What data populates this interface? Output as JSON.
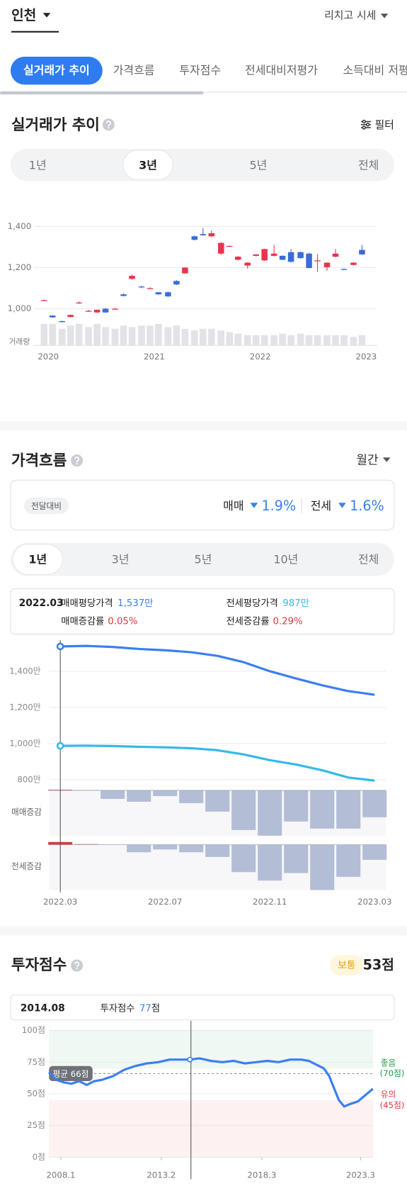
{
  "header": {
    "region": "인천",
    "source": "리치고 시세"
  },
  "tabs": {
    "items": [
      "실거래가 추이",
      "가격흐름",
      "투자점수",
      "전세대비저평가",
      "소득대비 저평가"
    ],
    "active": 0
  },
  "trade": {
    "title": "실거래가 추이",
    "filter": "필터",
    "periods": [
      "1년",
      "3년",
      "5년",
      "전체"
    ],
    "active": 1,
    "chart_data": {
      "type": "candlestick",
      "volume_label": "거래량",
      "x": [
        2019.96,
        2020.04,
        2020.13,
        2020.21,
        2020.29,
        2020.38,
        2020.46,
        2020.54,
        2020.63,
        2020.71,
        2020.79,
        2020.88,
        2020.96,
        2021.04,
        2021.13,
        2021.21,
        2021.29,
        2021.38,
        2021.46,
        2021.54,
        2021.63,
        2021.71,
        2021.79,
        2021.88,
        2021.96,
        2022.04,
        2022.13,
        2022.21,
        2022.29,
        2022.38,
        2022.46,
        2022.54,
        2022.63,
        2022.71,
        2022.79,
        2022.88,
        2022.96
      ],
      "ohlc": [
        [
          1038,
          1044,
          1036,
          1042
        ],
        [
          967,
          969,
          955,
          958
        ],
        [
          940,
          942,
          933,
          935
        ],
        [
          960,
          972,
          958,
          970
        ],
        [
          1030,
          1036,
          1024,
          1030
        ],
        [
          990,
          995,
          985,
          990
        ],
        [
          982,
          996,
          980,
          995
        ],
        [
          1000,
          1004,
          980,
          982
        ],
        [
          1000,
          1004,
          996,
          1000
        ],
        [
          1070,
          1075,
          1060,
          1062
        ],
        [
          1145,
          1165,
          1142,
          1160
        ],
        [
          1108,
          1112,
          1100,
          1105
        ],
        [
          1100,
          1104,
          1096,
          1100
        ],
        [
          1080,
          1082,
          1068,
          1070
        ],
        [
          1080,
          1084,
          1058,
          1060
        ],
        [
          1135,
          1138,
          1115,
          1118
        ],
        [
          1172,
          1202,
          1170,
          1200
        ],
        [
          1352,
          1356,
          1332,
          1335
        ],
        [
          1363,
          1392,
          1355,
          1357
        ],
        [
          1352,
          1380,
          1348,
          1367
        ],
        [
          1268,
          1324,
          1262,
          1320
        ],
        [
          1305,
          1308,
          1300,
          1305
        ],
        [
          1238,
          1256,
          1235,
          1253
        ],
        [
          1210,
          1226,
          1195,
          1224
        ],
        [
          1257,
          1266,
          1254,
          1264
        ],
        [
          1235,
          1292,
          1232,
          1290
        ],
        [
          1257,
          1310,
          1254,
          1268
        ],
        [
          1257,
          1260,
          1236,
          1238
        ],
        [
          1275,
          1290,
          1225,
          1228
        ],
        [
          1275,
          1278,
          1244,
          1246
        ],
        [
          1268,
          1272,
          1196,
          1198
        ],
        [
          1235,
          1265,
          1180,
          1235
        ],
        [
          1202,
          1226,
          1185,
          1224
        ],
        [
          1253,
          1290,
          1250,
          1268
        ],
        [
          1193,
          1196,
          1189,
          1191
        ],
        [
          1213,
          1226,
          1210,
          1224
        ],
        [
          1286,
          1310,
          1262,
          1264
        ]
      ],
      "volumes": [
        26,
        26,
        20,
        24,
        26,
        22,
        26,
        22,
        20,
        24,
        22,
        24,
        24,
        26,
        22,
        24,
        20,
        18,
        20,
        20,
        18,
        16,
        14,
        12,
        12,
        12,
        12,
        14,
        12,
        14,
        12,
        12,
        12,
        12,
        12,
        10,
        12
      ],
      "xlim": [
        2019.9,
        2023.1
      ],
      "xticks": [
        2020,
        2021,
        2022,
        2023
      ],
      "ylim": [
        930,
        1440
      ],
      "yticks": [
        {
          "value": 1000,
          "label": "1,000"
        },
        {
          "value": 1200,
          "label": "1,200"
        },
        {
          "value": 1400,
          "label": "1,400"
        }
      ],
      "up_color": "#e8344e",
      "down_color": "#3a6bd8",
      "volume_color": "#e2e3e7",
      "grid": true
    }
  },
  "flow": {
    "title": "가격흐름",
    "interval": "월간",
    "compare": {
      "label": "전달대비",
      "sale_label": "매매",
      "sale": "1.9%",
      "jeonse_label": "전세",
      "jeonse": "1.6%"
    },
    "periods": [
      "1년",
      "3년",
      "5년",
      "10년",
      "전체"
    ],
    "active": 0,
    "tooltip": {
      "date": "2022.03",
      "sale_price_label": "매매평당가격",
      "sale_price": "1,537만",
      "jeonse_price_label": "전세평당가격",
      "jeonse_price": "987만",
      "sale_change_label": "매매증감률",
      "sale_change": "0.05%",
      "jeonse_change_label": "전세증감률",
      "jeonse_change": "0.29%"
    },
    "chart_data": {
      "type": "line",
      "categories": [
        "2022.03",
        null,
        null,
        null,
        "2022.07",
        null,
        null,
        null,
        "2022.11",
        null,
        null,
        null,
        "2023.03"
      ],
      "series": [
        {
          "color": "#3b7ff0",
          "values": [
            1537,
            1540,
            1534,
            1523,
            1516,
            1505,
            1485,
            1450,
            1400,
            1360,
            1322,
            1290,
            1270
          ]
        },
        {
          "color": "#35b9e8",
          "values": [
            987,
            988,
            986,
            982,
            979,
            974,
            963,
            940,
            908,
            884,
            852,
            812,
            795
          ]
        }
      ],
      "ylim": [
        770,
        1580
      ],
      "yticks": [
        {
          "value": 800,
          "label": "800만"
        },
        {
          "value": 1000,
          "label": "1,000만"
        },
        {
          "value": 1200,
          "label": "1,200만"
        },
        {
          "value": 1400,
          "label": "1,400만"
        }
      ],
      "grid": true,
      "bars": [
        {
          "name": "매매증감",
          "values": [
            0.05,
            0.03,
            -0.6,
            -0.8,
            -0.4,
            -0.9,
            -1.5,
            -2.8,
            -3.2,
            -2.2,
            -2.7,
            -2.7,
            -1.9
          ]
        },
        {
          "name": "전세증감",
          "values": [
            0.29,
            0.1,
            0,
            -0.8,
            -0.5,
            -0.8,
            -1.3,
            -2.9,
            -3.8,
            -3.0,
            -4.8,
            -3.4,
            -1.6
          ]
        }
      ],
      "bar_color": "#b3bdd6",
      "pos_color": "#e0363f"
    }
  },
  "score": {
    "title": "투자점수",
    "grade": "보통",
    "total": "53점",
    "tooltip": {
      "date": "2014.08",
      "label": "투자점수",
      "value": "77",
      "unit": "점"
    },
    "chart_data": {
      "type": "line",
      "x": [
        2007.4,
        2007.78,
        2008.16,
        2008.54,
        2008.92,
        2009.31,
        2009.69,
        2010.07,
        2010.64,
        2011.21,
        2011.78,
        2012.35,
        2012.93,
        2013.5,
        2014.07,
        2014.53,
        2015.02,
        2015.59,
        2016.17,
        2016.74,
        2017.31,
        2017.88,
        2018.45,
        2019.02,
        2019.6,
        2020.17,
        2020.55,
        2020.93,
        2021.31,
        2021.58,
        2021.81,
        2022.07,
        2022.34,
        2022.64,
        2023.03,
        2023.41,
        2023.79
      ],
      "values": [
        67,
        61,
        59,
        58,
        60,
        57,
        60,
        61,
        64,
        69,
        72,
        74,
        75,
        77,
        77,
        77,
        78,
        76,
        75,
        76,
        74,
        75,
        76,
        75,
        77,
        77,
        76,
        73,
        70,
        64,
        55,
        45,
        40,
        42,
        44,
        49,
        54
      ],
      "color": "#3b7ff0",
      "xlim": [
        2007.4,
        2023.8
      ],
      "xticks": [
        {
          "value": 2008.0,
          "label": "2008.1"
        },
        {
          "value": 2013.08,
          "label": "2013.2"
        },
        {
          "value": 2018.17,
          "label": "2018.3"
        },
        {
          "value": 2023.17,
          "label": "2023.3"
        }
      ],
      "ylim": [
        0,
        100
      ],
      "yticks": [
        {
          "value": 0,
          "label": "0점"
        },
        {
          "value": 25,
          "label": "25점"
        },
        {
          "value": 50,
          "label": "50점"
        },
        {
          "value": 75,
          "label": "75점"
        },
        {
          "value": 100,
          "label": "100점"
        }
      ],
      "average": {
        "value": 66,
        "label": "평균 66점"
      },
      "bands": [
        {
          "value": 70,
          "label": "좋음",
          "sub": "(70점)",
          "color": "#1e9e4a"
        },
        {
          "value": 45,
          "label": "유의",
          "sub": "(45점)",
          "color": "#e0363f"
        }
      ]
    }
  }
}
